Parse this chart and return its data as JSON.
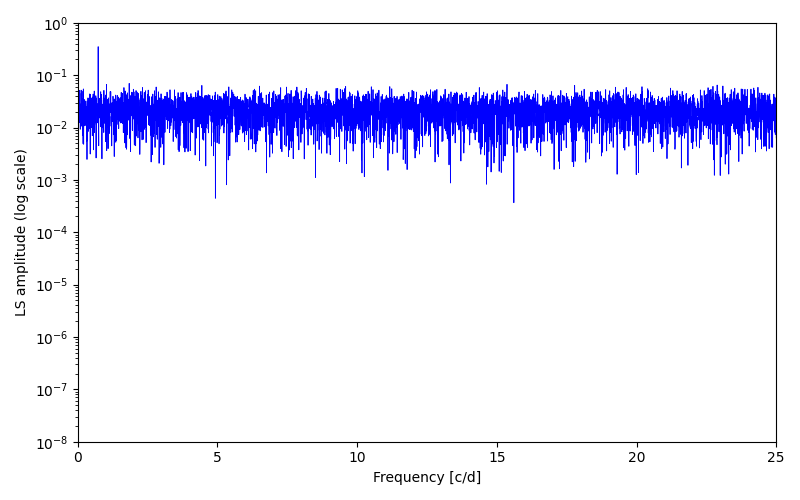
{
  "xlabel": "Frequency [c/d]",
  "ylabel": "LS amplitude (log scale)",
  "line_color": "#0000ff",
  "xlim": [
    0,
    25
  ],
  "ylim": [
    1e-08,
    1.0
  ],
  "background_color": "#ffffff",
  "figsize": [
    8.0,
    5.0
  ],
  "dpi": 100,
  "line_width": 0.6,
  "seed": 12345,
  "n_points": 5000,
  "freq_max": 25.0
}
